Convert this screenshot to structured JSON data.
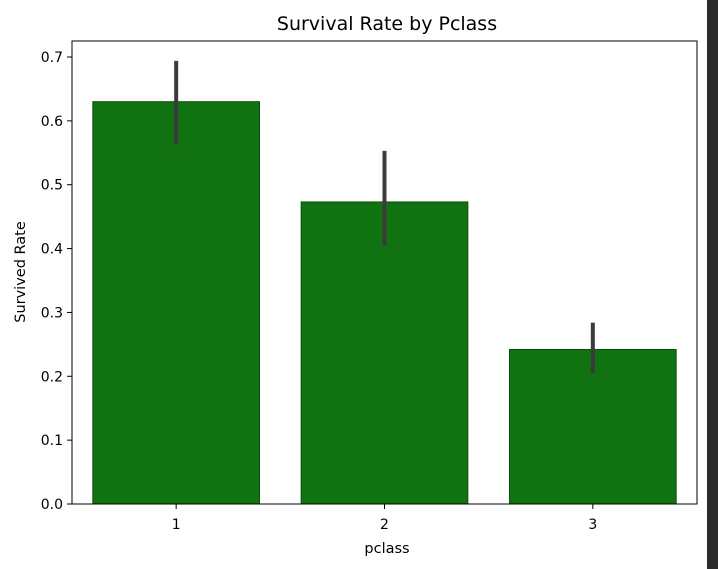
{
  "chart_data": {
    "type": "bar",
    "title": "Survival Rate by Pclass",
    "xlabel": "pclass",
    "ylabel": "Survived Rate",
    "categories": [
      "1",
      "2",
      "3"
    ],
    "values": [
      0.63,
      0.473,
      0.242
    ],
    "error_bars": [
      {
        "low": 0.563,
        "high": 0.694
      },
      {
        "low": 0.405,
        "high": 0.553
      },
      {
        "low": 0.205,
        "high": 0.284
      }
    ],
    "ylim": [
      0,
      0.7
    ],
    "yticks": [
      "0.0",
      "0.1",
      "0.2",
      "0.3",
      "0.4",
      "0.5",
      "0.6",
      "0.7"
    ],
    "grid": false,
    "bar_color": "#117211",
    "bar_edge_color": "#0a4f0a",
    "error_bar_color": "#3b3b3b"
  }
}
